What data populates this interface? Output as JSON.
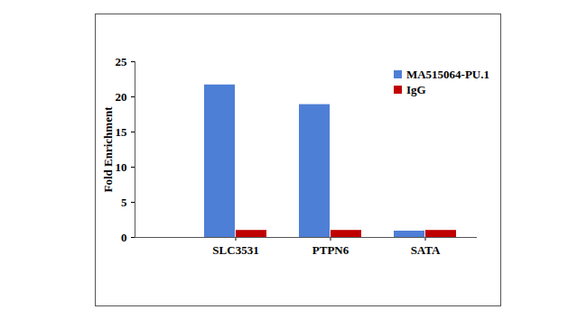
{
  "chart_data": {
    "type": "bar",
    "y_label": "Fold Enrichment",
    "categories": [
      "SLC3531",
      "PTPN6",
      "SATA"
    ],
    "series": [
      {
        "name": "MA515064-PU.1",
        "color": "#4e7fd6",
        "values": [
          21.7,
          18.9,
          0.9
        ]
      },
      {
        "name": "IgG",
        "color": "#c00000",
        "values": [
          1.0,
          1.0,
          1.0
        ]
      }
    ],
    "ylim": [
      0,
      25
    ],
    "yticks": [
      0,
      5,
      10,
      15,
      20,
      25
    ],
    "grid": false,
    "legend": "top-right"
  }
}
